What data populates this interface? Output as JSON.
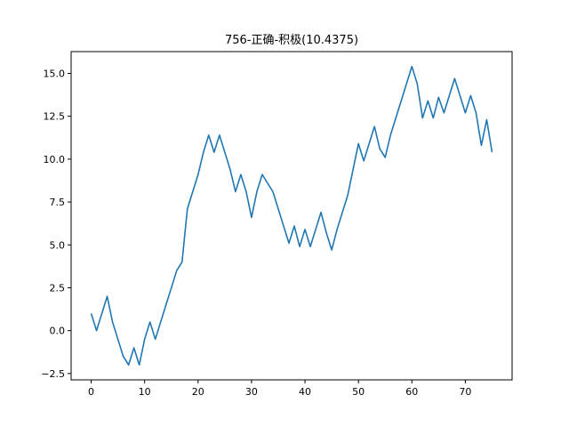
{
  "chart_data": {
    "type": "line",
    "title": "756-正确-积极(10.4375)",
    "xlabel": "",
    "ylabel": "",
    "xlim": [
      -3.75,
      78.75
    ],
    "ylim": [
      -2.87,
      16.27
    ],
    "x_ticks": [
      0,
      10,
      20,
      30,
      40,
      50,
      60,
      70
    ],
    "y_ticks": [
      -2.5,
      0.0,
      2.5,
      5.0,
      7.5,
      10.0,
      12.5,
      15.0
    ],
    "y_tick_labels": [
      "−2.5",
      "0.0",
      "2.5",
      "5.0",
      "7.5",
      "10.0",
      "12.5",
      "15.0"
    ],
    "grid": false,
    "line_color": "#1f77b4",
    "series": [
      {
        "x": [
          0,
          1,
          2,
          3,
          4,
          5,
          6,
          7,
          8,
          9,
          10,
          11,
          12,
          13,
          14,
          15,
          16,
          17,
          18,
          19,
          20,
          21,
          22,
          23,
          24,
          25,
          26,
          27,
          28,
          29,
          30,
          31,
          32,
          33,
          34,
          35,
          36,
          37,
          38,
          39,
          40,
          41,
          42,
          43,
          44,
          45,
          46,
          47,
          48,
          49,
          50,
          51,
          52,
          53,
          54,
          55,
          56,
          57,
          58,
          59,
          60,
          61,
          62,
          63,
          64,
          65,
          66,
          67,
          68,
          69,
          70,
          71,
          72,
          73,
          74,
          75
        ],
        "values": [
          1.0,
          0.0,
          1.0,
          2.0,
          0.5,
          -0.5,
          -1.5,
          -2.0,
          -1.0,
          -2.0,
          -0.5,
          0.5,
          -0.5,
          0.5,
          1.5,
          2.5,
          3.5,
          4.0,
          7.1,
          8.1,
          9.1,
          10.4,
          11.4,
          10.4,
          11.4,
          10.4,
          9.4,
          8.1,
          9.1,
          8.1,
          6.6,
          8.1,
          9.1,
          8.6,
          8.1,
          7.1,
          6.1,
          5.1,
          6.1,
          4.9,
          5.9,
          4.9,
          5.9,
          6.9,
          5.7,
          4.7,
          5.9,
          6.9,
          7.9,
          9.4,
          10.9,
          9.9,
          10.9,
          11.9,
          10.6,
          10.1,
          11.4,
          12.4,
          13.4,
          14.4,
          15.4,
          14.4,
          12.4,
          13.4,
          12.4,
          13.6,
          12.7,
          13.7,
          14.7,
          13.7,
          12.7,
          13.7,
          12.7,
          10.8,
          12.3,
          10.4
        ]
      }
    ]
  }
}
